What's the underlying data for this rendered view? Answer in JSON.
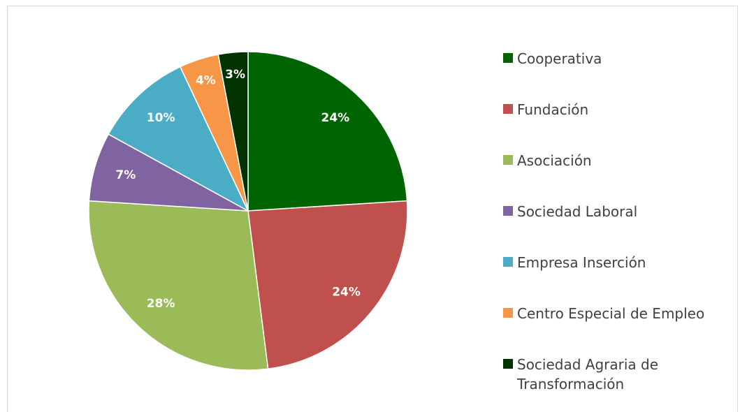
{
  "chart_data": {
    "type": "pie",
    "categories": [
      "Cooperativa",
      "Fundación",
      "Asociación",
      "Sociedad Laboral",
      "Empresa Inserción",
      "Centro Especial de Empleo",
      "Sociedad Agraria de Transformación"
    ],
    "values": [
      24,
      24,
      28,
      7,
      10,
      4,
      3
    ],
    "value_labels": [
      "24%",
      "24%",
      "28%",
      "7%",
      "10%",
      "4%",
      "3%"
    ],
    "colors": [
      "#006400",
      "#c0504d",
      "#9bbb59",
      "#8064a2",
      "#4bacc6",
      "#f79646",
      "#003300"
    ],
    "legend": "right"
  }
}
